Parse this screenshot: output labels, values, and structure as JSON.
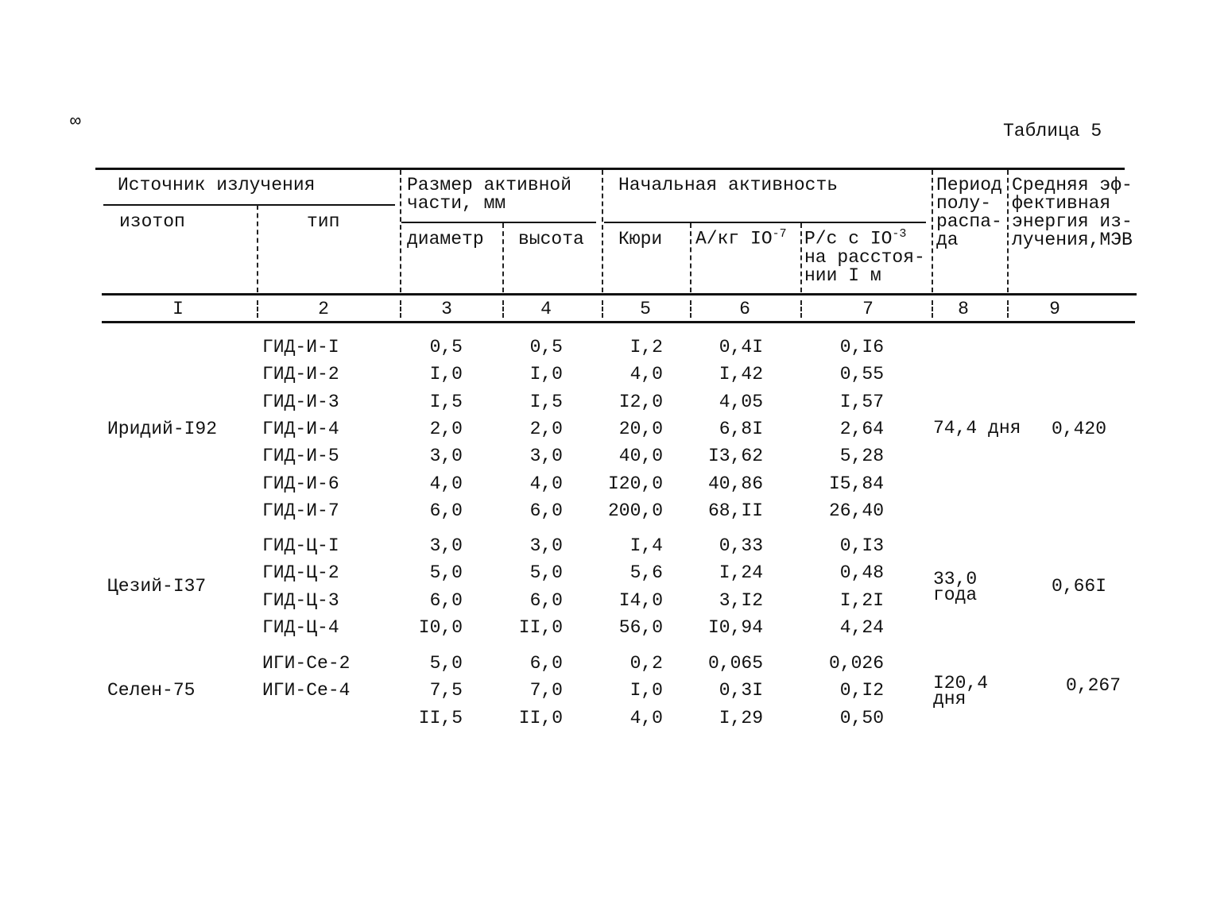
{
  "page_number": "∞",
  "caption": "Таблица 5",
  "header": {
    "source": "Источник излучения",
    "isotope": "изотоп",
    "type": "тип",
    "size": "Размер активной\nчасти, мм",
    "diameter": "диаметр",
    "height": "высота",
    "initial": "Начальная активность",
    "curie": "Кюри",
    "akg": {
      "text": "А/кг IO",
      "sup": "-7"
    },
    "rs": {
      "text": "Р/с с IO",
      "sup": "-3",
      "rest": "на расстоя-\nнии I м"
    },
    "period": "Период\nполу-\nраспа-\nда",
    "energy": "Средняя эф-\nфективная\nэнергия из-\nлучения,МЭВ"
  },
  "column_numbers": [
    "I",
    "2",
    "3",
    "4",
    "5",
    "6",
    "7",
    "8",
    "9"
  ],
  "groups": [
    {
      "isotope": "Иридий-I92",
      "period": "74,4 дня",
      "energy": "0,420",
      "rows": [
        [
          "ГИД-И-I",
          "0,5",
          "0,5",
          "I,2",
          "0,4I",
          "0,I6"
        ],
        [
          "ГИД-И-2",
          "I,0",
          "I,0",
          "4,0",
          "I,42",
          "0,55"
        ],
        [
          "ГИД-И-3",
          "I,5",
          "I,5",
          "I2,0",
          "4,05",
          "I,57"
        ],
        [
          "ГИД-И-4",
          "2,0",
          "2,0",
          "20,0",
          "6,8I",
          "2,64"
        ],
        [
          "ГИД-И-5",
          "3,0",
          "3,0",
          "40,0",
          "I3,62",
          "5,28"
        ],
        [
          "ГИД-И-6",
          "4,0",
          "4,0",
          "I20,0",
          "40,86",
          "I5,84"
        ],
        [
          "ГИД-И-7",
          "6,0",
          "6,0",
          "200,0",
          "68,II",
          "26,40"
        ]
      ]
    },
    {
      "isotope": "Цезий-I37",
      "period": "33,0\nгода",
      "energy": "0,66I",
      "rows": [
        [
          "ГИД-Ц-I",
          "3,0",
          "3,0",
          "I,4",
          "0,33",
          "0,I3"
        ],
        [
          "ГИД-Ц-2",
          "5,0",
          "5,0",
          "5,6",
          "I,24",
          "0,48"
        ],
        [
          "ГИД-Ц-3",
          "6,0",
          "6,0",
          "I4,0",
          "3,I2",
          "I,2I"
        ],
        [
          "ГИД-Ц-4",
          "I0,0",
          "II,0",
          "56,0",
          "I0,94",
          "4,24"
        ]
      ]
    },
    {
      "isotope": "Селен-75",
      "period": "I20,4\nдня",
      "energy": "0,267",
      "rows": [
        [
          "ИГИ-Се-2",
          "5,0",
          "6,0",
          "0,2",
          "0,065",
          "0,026"
        ],
        [
          "ИГИ-Се-4",
          "7,5",
          "7,0",
          "I,0",
          "0,3I",
          "0,I2"
        ],
        [
          null,
          "II,5",
          "II,0",
          "4,0",
          "I,29",
          "0,50"
        ]
      ]
    }
  ]
}
